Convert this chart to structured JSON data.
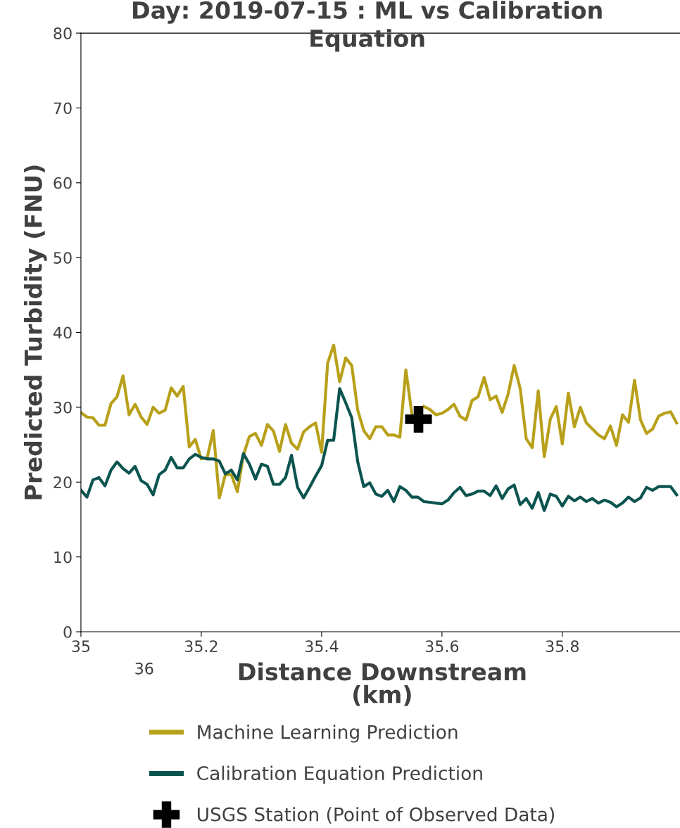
{
  "chart_data": {
    "type": "line",
    "title": "Day: 2019-07-15 : ML vs Calibration Equation",
    "xlabel": "Distance Downstream (km)",
    "ylabel": "Predicted Turbidity (FNU)",
    "x": [
      35.0,
      35.01,
      35.02,
      35.03,
      35.04,
      35.05,
      35.06,
      35.07,
      35.08,
      35.09,
      35.1,
      35.11,
      35.12,
      35.13,
      35.14,
      35.15,
      35.16,
      35.17,
      35.18,
      35.19,
      35.2,
      35.21,
      35.22,
      35.23,
      35.24,
      35.25,
      35.26,
      35.27,
      35.28,
      35.29,
      35.3,
      35.31,
      35.32,
      35.33,
      35.34,
      35.35,
      35.36,
      35.37,
      35.38,
      35.39,
      35.4,
      35.41,
      35.42,
      35.43,
      35.44,
      35.45,
      35.46,
      35.47,
      35.48,
      35.49,
      35.5,
      35.51,
      35.52,
      35.53,
      35.54,
      35.55,
      35.56,
      35.57,
      35.58,
      35.59,
      35.6,
      35.61,
      35.62,
      35.63,
      35.64,
      35.65,
      35.66,
      35.67,
      35.68,
      35.69,
      35.7,
      35.71,
      35.72,
      35.73,
      35.74,
      35.75,
      35.76,
      35.77,
      35.78,
      35.79,
      35.8,
      35.81,
      35.82,
      35.83,
      35.84,
      35.85,
      35.86,
      35.87,
      35.88,
      35.89,
      35.9,
      35.91,
      35.92,
      35.93,
      35.94,
      35.95,
      35.96,
      35.97,
      35.98,
      35.99
    ],
    "series": [
      {
        "name": "Machine Learning Prediction",
        "color": "#b8a01a",
        "values": [
          29.3,
          28.7,
          28.6,
          27.6,
          27.6,
          30.5,
          31.4,
          34.2,
          29.0,
          30.4,
          28.7,
          27.7,
          30.0,
          29.2,
          29.6,
          32.6,
          31.5,
          32.8,
          24.7,
          25.7,
          23.1,
          23.3,
          26.9,
          17.9,
          21.0,
          21.0,
          18.7,
          23.6,
          26.1,
          26.5,
          24.9,
          27.7,
          26.8,
          24.1,
          27.7,
          25.2,
          24.4,
          26.7,
          27.4,
          27.9,
          24.0,
          35.9,
          38.3,
          33.4,
          36.6,
          35.6,
          29.6,
          26.9,
          25.8,
          27.4,
          27.4,
          26.3,
          26.3,
          26.0,
          35.0,
          29.1,
          null,
          30.1,
          29.7,
          29.0,
          29.2,
          29.7,
          30.4,
          28.8,
          28.3,
          30.9,
          31.4,
          34.0,
          31.0,
          31.5,
          29.3,
          31.8,
          35.6,
          32.5,
          25.8,
          24.6,
          32.2,
          23.4,
          28.4,
          30.1,
          25.1,
          31.9,
          27.4,
          30.0,
          27.9,
          27.1,
          26.3,
          25.8,
          27.5,
          24.9,
          29.0,
          28.0,
          33.6,
          28.3,
          26.5,
          27.1,
          28.8,
          29.2,
          29.4,
          27.9
        ]
      },
      {
        "name": "Calibration Equation Prediction",
        "color": "#0c5450",
        "values": [
          18.9,
          18.0,
          20.3,
          20.6,
          19.5,
          21.6,
          22.7,
          21.8,
          21.2,
          22.1,
          20.2,
          19.7,
          18.3,
          21.0,
          21.6,
          23.3,
          21.9,
          21.9,
          23.1,
          23.7,
          23.3,
          23.1,
          23.1,
          22.8,
          21.1,
          21.6,
          20.3,
          23.8,
          22.4,
          20.4,
          22.4,
          22.1,
          19.7,
          19.7,
          20.6,
          23.6,
          19.3,
          17.9,
          19.3,
          20.8,
          22.2,
          25.6,
          25.6,
          32.5,
          30.6,
          28.6,
          22.7,
          19.4,
          19.9,
          18.4,
          18.1,
          18.9,
          17.4,
          19.4,
          18.9,
          18.0,
          18.0,
          17.4,
          17.3,
          17.2,
          17.1,
          17.6,
          18.6,
          19.3,
          18.2,
          18.4,
          18.8,
          18.8,
          18.2,
          19.5,
          17.8,
          19.1,
          19.6,
          17.0,
          17.8,
          16.5,
          18.6,
          16.2,
          18.4,
          18.1,
          16.8,
          18.1,
          17.5,
          18.0,
          17.4,
          17.8,
          17.2,
          17.6,
          17.3,
          16.7,
          17.2,
          18.0,
          17.4,
          17.9,
          19.3,
          18.9,
          19.4,
          19.4,
          19.4,
          18.3
        ]
      },
      {
        "name": "USGS Station (Point of Observed Data)",
        "type": "scatter",
        "color": "#000000",
        "marker": "cross",
        "x": [
          35.561
        ],
        "values": [
          28.4
        ]
      }
    ],
    "xlim": [
      35,
      35.995
    ],
    "xticks": [
      35,
      35.2,
      35.4,
      35.6,
      35.8
    ],
    "ylim": [
      0,
      80
    ],
    "yticks": [
      0,
      10,
      20,
      30,
      40,
      50,
      60,
      70,
      80
    ],
    "annotations": [
      "36"
    ],
    "grid": false,
    "legend": "bottom",
    "marker": "none",
    "line_style": "solid"
  }
}
